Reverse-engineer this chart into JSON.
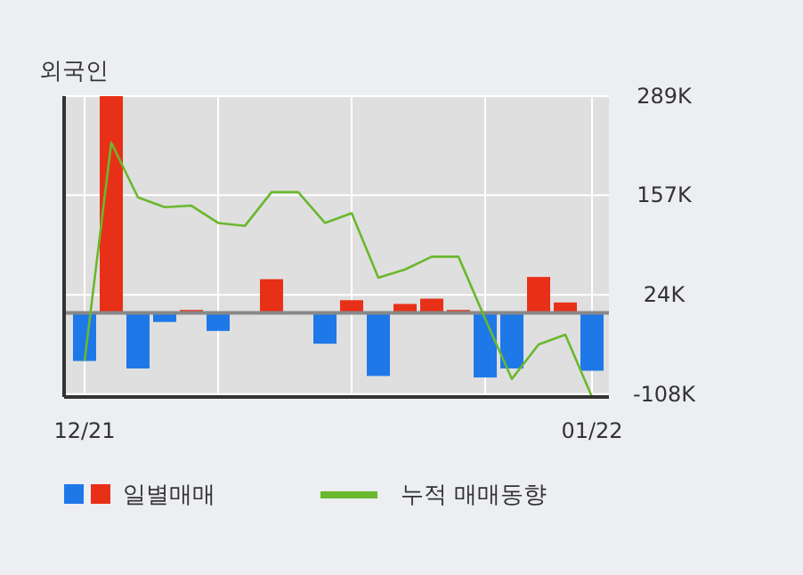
{
  "chart_data": {
    "type": "bar",
    "title": "외국인",
    "categories": [
      "12/21",
      null,
      null,
      null,
      null,
      null,
      null,
      null,
      null,
      null,
      null,
      null,
      null,
      null,
      null,
      null,
      null,
      null,
      null,
      "01/22"
    ],
    "series": [
      {
        "name": "일별매매",
        "values": [
          -64,
          289,
          -74,
          -12,
          4,
          -24,
          0,
          45,
          0,
          -41,
          17,
          -84,
          12,
          19,
          4,
          -86,
          -74,
          48,
          14,
          -77
        ],
        "colors": [
          "#1f78e8",
          "#e83018",
          "#1f78e8",
          "#1f78e8",
          "#e83018",
          "#1f78e8",
          "#e83018",
          "#e83018",
          "#e83018",
          "#1f78e8",
          "#e83018",
          "#1f78e8",
          "#e83018",
          "#e83018",
          "#e83018",
          "#1f78e8",
          "#1f78e8",
          "#e83018",
          "#e83018",
          "#1f78e8"
        ]
      },
      {
        "name": "누적 매매동향",
        "type": "line",
        "color": "#6ab82e",
        "values": [
          -64,
          227,
          154,
          141,
          143,
          120,
          116,
          161,
          161,
          120,
          133,
          47,
          58,
          75,
          75,
          -8,
          -88,
          -42,
          -29,
          -112
        ]
      }
    ],
    "ylim": [
      -112,
      289
    ],
    "yticks": [
      {
        "value": 289,
        "label": "289K"
      },
      {
        "value": 157,
        "label": "157K"
      },
      {
        "value": 24,
        "label": "24K"
      },
      {
        "value": -108,
        "label": "-108K"
      }
    ],
    "grid": true,
    "legend": "bottom"
  }
}
